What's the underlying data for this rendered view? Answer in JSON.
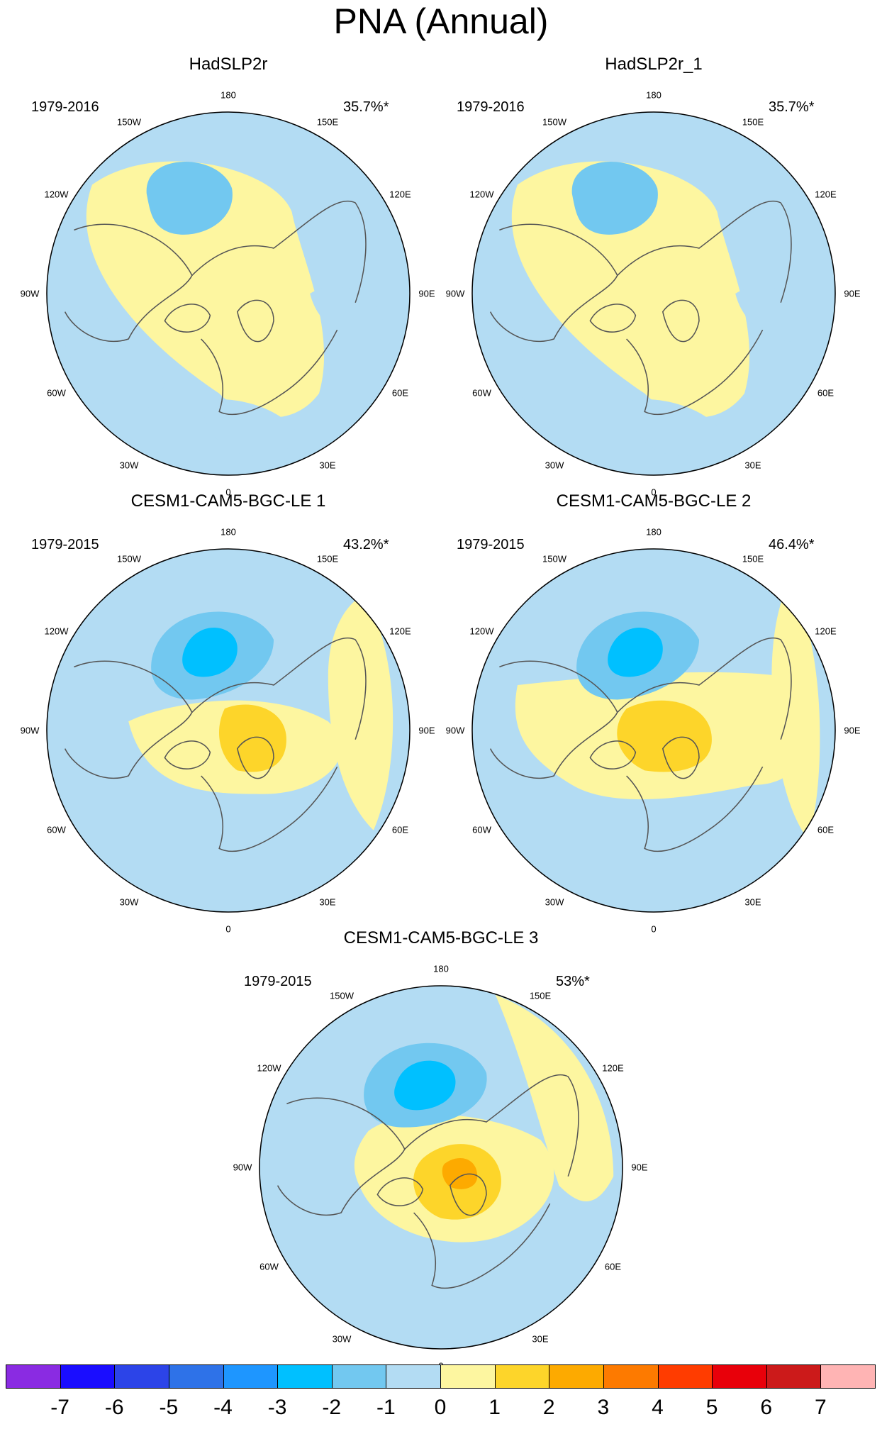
{
  "title": "PNA (Annual)",
  "lon_labels": [
    "180",
    "150E",
    "120E",
    "90E",
    "60E",
    "30E",
    "0",
    "30W",
    "60W",
    "90W",
    "120W",
    "150W"
  ],
  "panels": [
    {
      "title": "HadSLP2r",
      "period": "1979-2016",
      "pct": "35.7%*",
      "pattern": "obs"
    },
    {
      "title": "HadSLP2r_1",
      "period": "1979-2016",
      "pct": "35.7%*",
      "pattern": "obs"
    },
    {
      "title": "CESM1-CAM5-BGC-LE 1",
      "period": "1979-2015",
      "pct": "43.2%*",
      "pattern": "model1"
    },
    {
      "title": "CESM1-CAM5-BGC-LE 2",
      "period": "1979-2015",
      "pct": "46.4%*",
      "pattern": "model2"
    },
    {
      "title": "CESM1-CAM5-BGC-LE 3",
      "period": "1979-2015",
      "pct": "53%*",
      "pattern": "model3"
    }
  ],
  "colorbar": {
    "labels": [
      "-7",
      "-6",
      "-5",
      "-4",
      "-3",
      "-2",
      "-1",
      "0",
      "1",
      "2",
      "3",
      "4",
      "5",
      "6",
      "7"
    ],
    "colors": [
      "#8a2be2",
      "#1a0dff",
      "#2c44e8",
      "#2e72e8",
      "#1e96ff",
      "#00c0ff",
      "#72c8f0",
      "#b3dcf3",
      "#fdf6a0",
      "#fdd52a",
      "#fdaa00",
      "#fd7a00",
      "#ff3c00",
      "#e8000a",
      "#cc1a1a",
      "#ffb4b4"
    ]
  }
}
